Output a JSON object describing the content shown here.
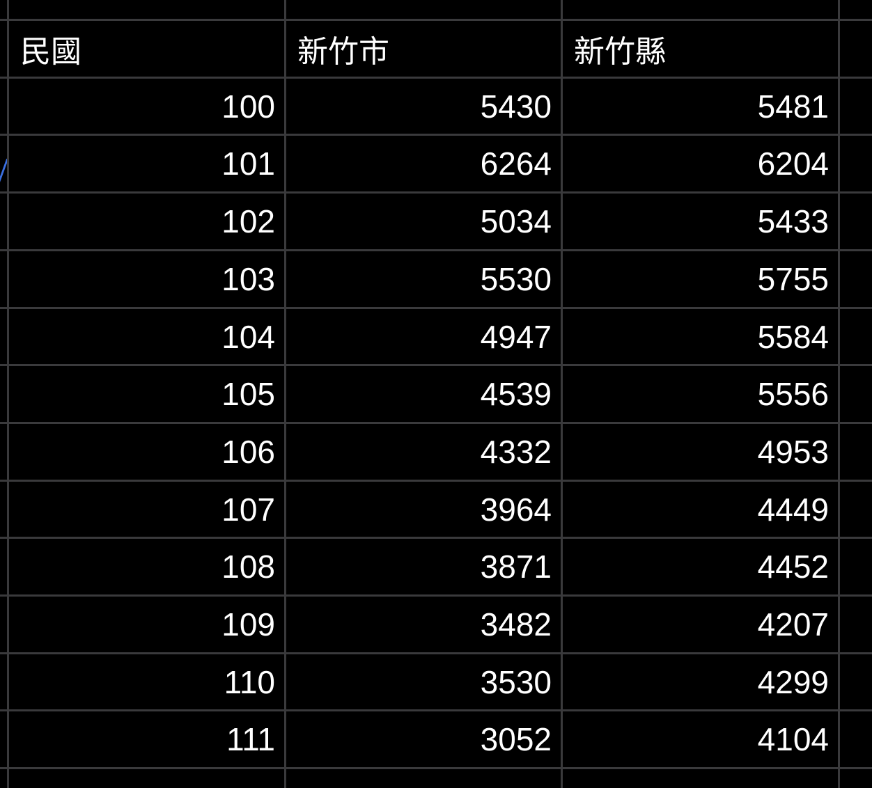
{
  "sheet": {
    "headers": [
      "民國",
      "新竹市",
      "新竹縣"
    ],
    "rows": [
      [
        "100",
        "5430",
        "5481"
      ],
      [
        "101",
        "6264",
        "6204"
      ],
      [
        "102",
        "5034",
        "5433"
      ],
      [
        "103",
        "5530",
        "5755"
      ],
      [
        "104",
        "4947",
        "5584"
      ],
      [
        "105",
        "4539",
        "5556"
      ],
      [
        "106",
        "4332",
        "4953"
      ],
      [
        "107",
        "3964",
        "4449"
      ],
      [
        "108",
        "3871",
        "4452"
      ],
      [
        "109",
        "3482",
        "4207"
      ],
      [
        "110",
        "3530",
        "4299"
      ],
      [
        "111",
        "3052",
        "4104"
      ]
    ]
  },
  "colors": {
    "background": "#000000",
    "gridline": "#3a3a3c",
    "text": "#ffffff",
    "link": "#3b6fe0"
  }
}
